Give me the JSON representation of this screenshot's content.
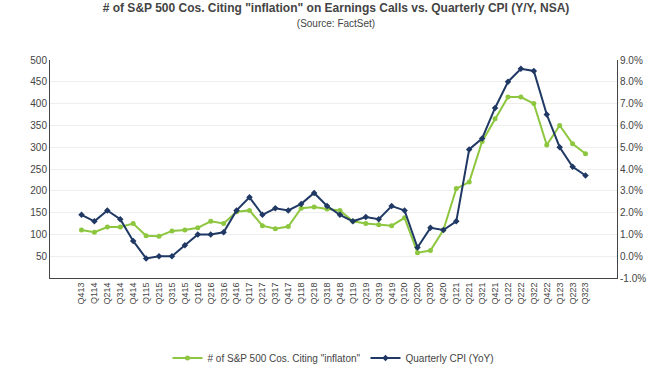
{
  "chart_data": {
    "type": "line",
    "title": "# of S&P 500 Cos. Citing \"inflation\" on Earnings Calls vs. Quarterly CPI (Y/Y, NSA)",
    "subtitle": "(Source: FactSet)",
    "categories": [
      "Q413",
      "Q114",
      "Q214",
      "Q314",
      "Q414",
      "Q115",
      "Q215",
      "Q315",
      "Q415",
      "Q116",
      "Q216",
      "Q316",
      "Q416",
      "Q117",
      "Q217",
      "Q317",
      "Q417",
      "Q118",
      "Q218",
      "Q318",
      "Q418",
      "Q119",
      "Q219",
      "Q319",
      "Q419",
      "Q120",
      "Q220",
      "Q320",
      "Q420",
      "Q121",
      "Q221",
      "Q321",
      "Q421",
      "Q122",
      "Q222",
      "Q322",
      "Q422",
      "Q123",
      "Q223",
      "Q323"
    ],
    "series": [
      {
        "name": "# of S&P 500 Cos. Citing \"inflaton\"",
        "color": "#8dc63f",
        "marker": "circle",
        "values": [
          110,
          105,
          117,
          117,
          125,
          97,
          96,
          108,
          110,
          115,
          130,
          125,
          152,
          155,
          120,
          113,
          118,
          160,
          163,
          158,
          155,
          130,
          125,
          122,
          120,
          138,
          58,
          63,
          110,
          205,
          220,
          313,
          365,
          415,
          415,
          400,
          305,
          350,
          308,
          285
        ]
      },
      {
        "name": "Quarterly CPI (YoY)",
        "color": "#1f3864",
        "marker": "diamond",
        "axis": "y2",
        "values": [
          1.9,
          1.6,
          2.1,
          1.7,
          0.7,
          -0.1,
          0.0,
          0.0,
          0.5,
          1.0,
          1.0,
          1.1,
          2.1,
          2.7,
          1.9,
          2.2,
          2.1,
          2.4,
          2.9,
          2.3,
          1.9,
          1.6,
          1.8,
          1.7,
          2.3,
          2.1,
          0.4,
          1.3,
          1.2,
          1.6,
          4.9,
          5.4,
          6.8,
          8.0,
          8.6,
          8.5,
          6.5,
          5.0,
          4.1,
          3.7
        ]
      }
    ],
    "ylim": [
      0,
      500
    ],
    "yticks": [
      50,
      100,
      150,
      200,
      250,
      300,
      350,
      400,
      450,
      500
    ],
    "y2lim": [
      -1.0,
      9.0
    ],
    "y2ticks": [
      {
        "value": -1.0,
        "label": "-1.0%"
      },
      {
        "value": 0.0,
        "label": "0.0%"
      },
      {
        "value": 1.0,
        "label": "1.0%"
      },
      {
        "value": 2.0,
        "label": "2.0%"
      },
      {
        "value": 3.0,
        "label": "3.0%"
      },
      {
        "value": 4.0,
        "label": "4.0%"
      },
      {
        "value": 5.0,
        "label": "5.0%"
      },
      {
        "value": 6.0,
        "label": "6.0%"
      },
      {
        "value": 7.0,
        "label": "7.0%"
      },
      {
        "value": 8.0,
        "label": "8.0%"
      },
      {
        "value": 9.0,
        "label": "9.0%"
      }
    ],
    "grid": true,
    "legend": "bottom"
  }
}
